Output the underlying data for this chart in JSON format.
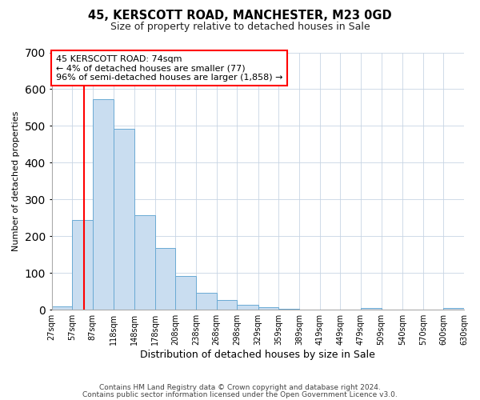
{
  "title": "45, KERSCOTT ROAD, MANCHESTER, M23 0GD",
  "subtitle": "Size of property relative to detached houses in Sale",
  "xlabel": "Distribution of detached houses by size in Sale",
  "ylabel": "Number of detached properties",
  "bar_color": "#c9ddf0",
  "bar_edge_color": "#6aaad4",
  "annotation_line1": "45 KERSCOTT ROAD: 74sqm",
  "annotation_line2": "← 4% of detached houses are smaller (77)",
  "annotation_line3": "96% of semi-detached houses are larger (1,858) →",
  "red_line_x": 74,
  "ylim": [
    0,
    700
  ],
  "yticks": [
    0,
    100,
    200,
    300,
    400,
    500,
    600,
    700
  ],
  "bin_edges": [
    27,
    57,
    87,
    118,
    148,
    178,
    208,
    238,
    268,
    298,
    329,
    359,
    389,
    419,
    449,
    479,
    509,
    540,
    570,
    600,
    630
  ],
  "bin_labels": [
    "27sqm",
    "57sqm",
    "87sqm",
    "118sqm",
    "148sqm",
    "178sqm",
    "208sqm",
    "238sqm",
    "268sqm",
    "298sqm",
    "329sqm",
    "359sqm",
    "389sqm",
    "419sqm",
    "449sqm",
    "479sqm",
    "509sqm",
    "540sqm",
    "570sqm",
    "600sqm",
    "630sqm"
  ],
  "counts": [
    10,
    245,
    573,
    493,
    258,
    168,
    92,
    47,
    27,
    14,
    6,
    2,
    0,
    1,
    0,
    5,
    0,
    0,
    0,
    5
  ],
  "footer1": "Contains HM Land Registry data © Crown copyright and database right 2024.",
  "footer2": "Contains public sector information licensed under the Open Government Licence v3.0."
}
